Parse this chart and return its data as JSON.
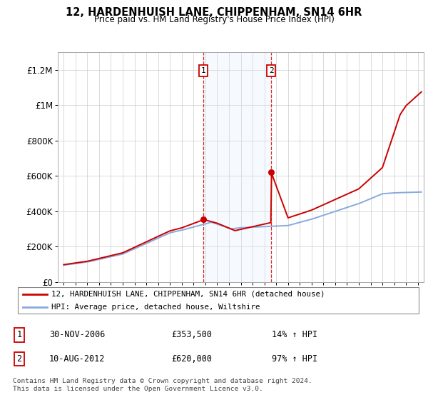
{
  "title": "12, HARDENHUISH LANE, CHIPPENHAM, SN14 6HR",
  "subtitle": "Price paid vs. HM Land Registry's House Price Index (HPI)",
  "sale1_label": "30-NOV-2006",
  "sale1_price": 353500,
  "sale1_price_str": "£353,500",
  "sale1_hpi_pct": "14%",
  "sale1_x": 2006.833,
  "sale2_label": "10-AUG-2012",
  "sale2_price": 620000,
  "sale2_price_str": "£620,000",
  "sale2_hpi_pct": "97%",
  "sale2_x": 2012.583,
  "legend_property": "12, HARDENHUISH LANE, CHIPPENHAM, SN14 6HR (detached house)",
  "legend_hpi": "HPI: Average price, detached house, Wiltshire",
  "footer_line1": "Contains HM Land Registry data © Crown copyright and database right 2024.",
  "footer_line2": "This data is licensed under the Open Government Licence v3.0.",
  "property_color": "#cc0000",
  "hpi_color": "#88aadd",
  "shade_color": "#ddeeff",
  "ylim": [
    0,
    1300000
  ],
  "yticks": [
    0,
    200000,
    400000,
    600000,
    800000,
    1000000,
    1200000
  ],
  "ytick_labels": [
    "£0",
    "£200K",
    "£400K",
    "£600K",
    "£800K",
    "£1M",
    "£1.2M"
  ],
  "xlim_left": 1994.5,
  "xlim_right": 2025.5
}
